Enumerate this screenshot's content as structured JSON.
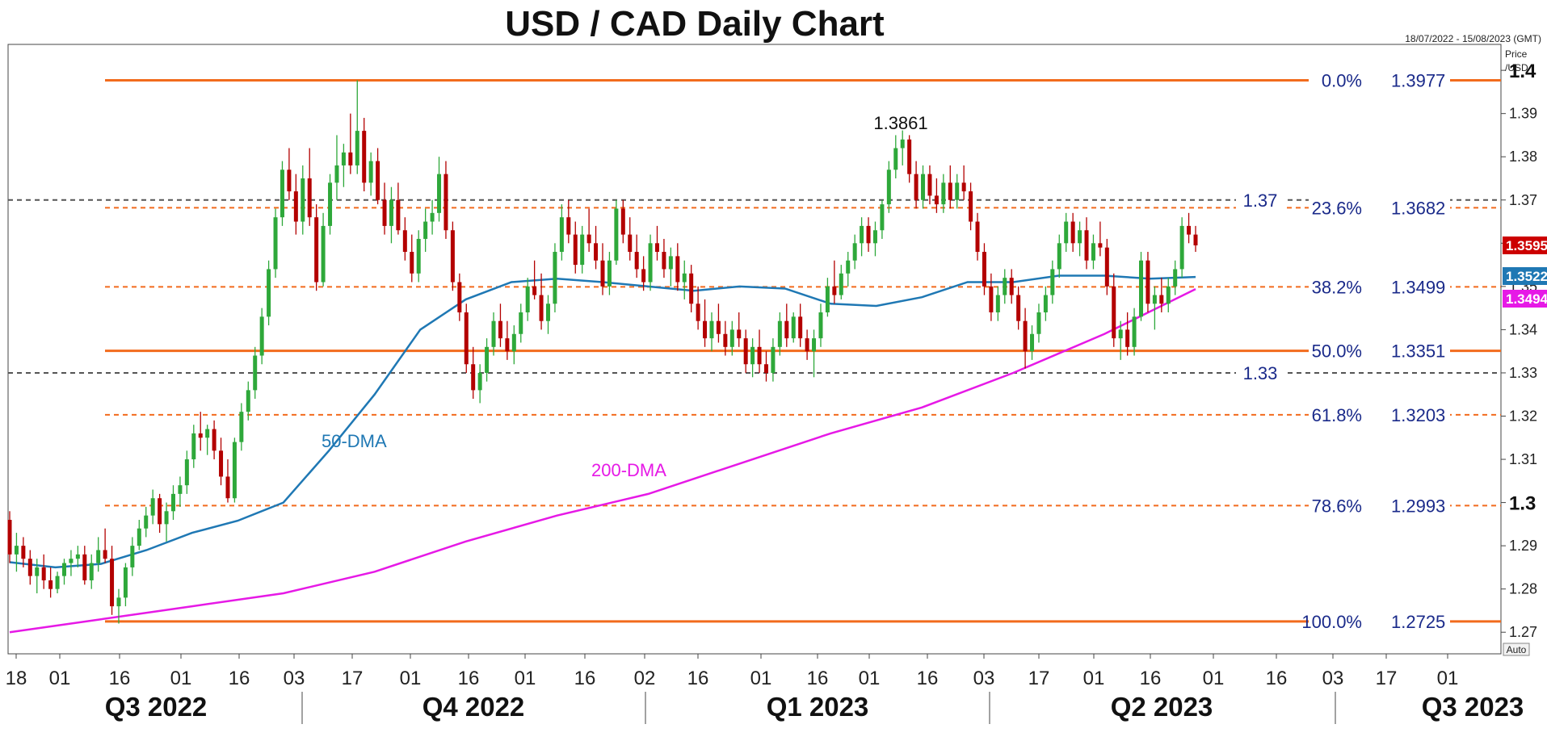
{
  "title": "USD / CAD Daily Chart",
  "date_range": "18/07/2022 - 15/08/2023 (GMT)",
  "price_axis_label": [
    "Price",
    "/USD"
  ],
  "auto_label": "Auto",
  "colors": {
    "up": "#2ea83a",
    "down": "#b30000",
    "fib": "#f26b1d",
    "dma50": "#1f78b4",
    "dma200": "#e619e6",
    "level": "#555555",
    "text_blue": "#1a2a8a",
    "price_badge": "#cc0000"
  },
  "chart_data": {
    "type": "candlestick",
    "title": "USD / CAD Daily Chart",
    "ylim": [
      1.265,
      1.406
    ],
    "y_ticks": [
      "1.27",
      "1.28",
      "1.29",
      "1.3",
      "1.31",
      "1.32",
      "1.33",
      "1.34",
      "1.35",
      "1.36",
      "1.37",
      "1.38",
      "1.39",
      "1.4"
    ],
    "x_ticks": [
      "18",
      "01",
      "16",
      "01",
      "16",
      "03",
      "17",
      "01",
      "16",
      "01",
      "16",
      "02",
      "16",
      "01",
      "16",
      "01",
      "16",
      "03",
      "17",
      "01",
      "16",
      "01",
      "16",
      "03",
      "17",
      "01"
    ],
    "quarters": [
      "Q3 2022",
      "Q4 2022",
      "Q1 2023",
      "Q2 2023",
      "Q3 2023"
    ],
    "fibonacci": [
      {
        "pct": "0.0%",
        "value": "1.3977",
        "level": 1.3977,
        "style": "solid"
      },
      {
        "pct": "23.6%",
        "value": "1.3682",
        "level": 1.3682,
        "style": "dashed"
      },
      {
        "pct": "38.2%",
        "value": "1.3499",
        "level": 1.3499,
        "style": "dashed"
      },
      {
        "pct": "50.0%",
        "value": "1.3351",
        "level": 1.3351,
        "style": "solid"
      },
      {
        "pct": "61.8%",
        "value": "1.3203",
        "level": 1.3203,
        "style": "dashed"
      },
      {
        "pct": "78.6%",
        "value": "1.2993",
        "level": 1.2993,
        "style": "dashed"
      },
      {
        "pct": "100.0%",
        "value": "1.2725",
        "level": 1.2725,
        "style": "solid"
      }
    ],
    "horizontal_levels": [
      {
        "label": "1.37",
        "level": 1.37
      },
      {
        "label": "1.33",
        "level": 1.33
      }
    ],
    "annotations": [
      {
        "text": "1.3861",
        "anchor_date": "2023-03-10",
        "price": 1.3861
      }
    ],
    "series_labels": [
      {
        "name": "50-DMA"
      },
      {
        "name": "200-DMA"
      }
    ],
    "last_values": [
      {
        "label": "1.3595",
        "value": 1.3595
      },
      {
        "label": "1.3522",
        "value": 1.3522
      },
      {
        "label": "1.3494",
        "value": 1.3494
      }
    ],
    "dma50": [
      [
        0,
        1.2862
      ],
      [
        10,
        1.285
      ],
      [
        20,
        1.2858
      ],
      [
        30,
        1.289
      ],
      [
        40,
        1.293
      ],
      [
        50,
        1.2958
      ],
      [
        60,
        1.3
      ],
      [
        70,
        1.312
      ],
      [
        80,
        1.325
      ],
      [
        90,
        1.34
      ],
      [
        100,
        1.347
      ],
      [
        110,
        1.351
      ],
      [
        120,
        1.3518
      ],
      [
        130,
        1.351
      ],
      [
        140,
        1.35
      ],
      [
        150,
        1.349
      ],
      [
        160,
        1.35
      ],
      [
        170,
        1.3495
      ],
      [
        180,
        1.346
      ],
      [
        190,
        1.3455
      ],
      [
        200,
        1.3475
      ],
      [
        210,
        1.351
      ],
      [
        220,
        1.351
      ],
      [
        230,
        1.3525
      ],
      [
        240,
        1.3525
      ],
      [
        250,
        1.3518
      ],
      [
        260,
        1.3522
      ]
    ],
    "dma200": [
      [
        0,
        1.27
      ],
      [
        20,
        1.273
      ],
      [
        40,
        1.276
      ],
      [
        60,
        1.279
      ],
      [
        80,
        1.284
      ],
      [
        100,
        1.291
      ],
      [
        120,
        1.297
      ],
      [
        140,
        1.302
      ],
      [
        160,
        1.309
      ],
      [
        180,
        1.316
      ],
      [
        200,
        1.322
      ],
      [
        220,
        1.33
      ],
      [
        240,
        1.339
      ],
      [
        260,
        1.3494
      ]
    ],
    "candles": [
      [
        0,
        1.296,
        1.298,
        1.286,
        1.288
      ],
      [
        1,
        1.288,
        1.293,
        1.284,
        1.29
      ],
      [
        2,
        1.29,
        1.292,
        1.285,
        1.287
      ],
      [
        3,
        1.287,
        1.289,
        1.281,
        1.283
      ],
      [
        4,
        1.283,
        1.287,
        1.279,
        1.285
      ],
      [
        5,
        1.285,
        1.288,
        1.28,
        1.282
      ],
      [
        6,
        1.282,
        1.285,
        1.278,
        1.28
      ],
      [
        7,
        1.28,
        1.284,
        1.279,
        1.283
      ],
      [
        8,
        1.283,
        1.287,
        1.281,
        1.286
      ],
      [
        9,
        1.286,
        1.289,
        1.283,
        1.287
      ],
      [
        10,
        1.287,
        1.29,
        1.285,
        1.288
      ],
      [
        11,
        1.288,
        1.29,
        1.281,
        1.282
      ],
      [
        12,
        1.282,
        1.288,
        1.28,
        1.286
      ],
      [
        13,
        1.286,
        1.292,
        1.284,
        1.289
      ],
      [
        14,
        1.289,
        1.294,
        1.286,
        1.287
      ],
      [
        15,
        1.287,
        1.29,
        1.274,
        1.276
      ],
      [
        16,
        1.276,
        1.28,
        1.272,
        1.278
      ],
      [
        17,
        1.278,
        1.286,
        1.276,
        1.285
      ],
      [
        18,
        1.285,
        1.292,
        1.283,
        1.29
      ],
      [
        19,
        1.29,
        1.296,
        1.289,
        1.294
      ],
      [
        20,
        1.294,
        1.299,
        1.292,
        1.297
      ],
      [
        21,
        1.297,
        1.303,
        1.295,
        1.301
      ],
      [
        22,
        1.301,
        1.302,
        1.293,
        1.295
      ],
      [
        23,
        1.295,
        1.3,
        1.291,
        1.298
      ],
      [
        24,
        1.298,
        1.304,
        1.296,
        1.302
      ],
      [
        25,
        1.302,
        1.306,
        1.299,
        1.304
      ],
      [
        26,
        1.304,
        1.312,
        1.302,
        1.31
      ],
      [
        27,
        1.31,
        1.318,
        1.308,
        1.316
      ],
      [
        28,
        1.316,
        1.321,
        1.312,
        1.315
      ],
      [
        29,
        1.315,
        1.318,
        1.311,
        1.317
      ],
      [
        30,
        1.317,
        1.319,
        1.31,
        1.312
      ],
      [
        31,
        1.312,
        1.315,
        1.304,
        1.306
      ],
      [
        32,
        1.306,
        1.31,
        1.3,
        1.301
      ],
      [
        33,
        1.301,
        1.315,
        1.3,
        1.314
      ],
      [
        34,
        1.314,
        1.323,
        1.312,
        1.321
      ],
      [
        35,
        1.321,
        1.328,
        1.319,
        1.326
      ],
      [
        36,
        1.326,
        1.336,
        1.324,
        1.334
      ],
      [
        37,
        1.334,
        1.345,
        1.332,
        1.343
      ],
      [
        38,
        1.343,
        1.356,
        1.341,
        1.354
      ],
      [
        39,
        1.354,
        1.368,
        1.352,
        1.366
      ],
      [
        40,
        1.366,
        1.379,
        1.364,
        1.377
      ],
      [
        41,
        1.377,
        1.382,
        1.37,
        1.372
      ],
      [
        42,
        1.372,
        1.376,
        1.362,
        1.365
      ],
      [
        43,
        1.365,
        1.378,
        1.362,
        1.375
      ],
      [
        44,
        1.375,
        1.382,
        1.364,
        1.366
      ],
      [
        45,
        1.366,
        1.369,
        1.349,
        1.351
      ],
      [
        46,
        1.351,
        1.367,
        1.35,
        1.364
      ],
      [
        47,
        1.364,
        1.376,
        1.362,
        1.374
      ],
      [
        48,
        1.374,
        1.385,
        1.37,
        1.378
      ],
      [
        49,
        1.378,
        1.383,
        1.373,
        1.381
      ],
      [
        50,
        1.381,
        1.39,
        1.376,
        1.378
      ],
      [
        51,
        1.378,
        1.3977,
        1.376,
        1.386
      ],
      [
        52,
        1.386,
        1.389,
        1.372,
        1.374
      ],
      [
        53,
        1.374,
        1.381,
        1.371,
        1.379
      ],
      [
        54,
        1.379,
        1.382,
        1.369,
        1.37
      ],
      [
        55,
        1.37,
        1.374,
        1.362,
        1.364
      ],
      [
        56,
        1.364,
        1.373,
        1.36,
        1.37
      ],
      [
        57,
        1.37,
        1.374,
        1.362,
        1.363
      ],
      [
        58,
        1.363,
        1.366,
        1.356,
        1.358
      ],
      [
        59,
        1.358,
        1.362,
        1.351,
        1.353
      ],
      [
        60,
        1.353,
        1.363,
        1.351,
        1.361
      ],
      [
        61,
        1.361,
        1.368,
        1.358,
        1.365
      ],
      [
        62,
        1.365,
        1.37,
        1.362,
        1.367
      ],
      [
        63,
        1.367,
        1.38,
        1.365,
        1.376
      ],
      [
        64,
        1.376,
        1.379,
        1.361,
        1.363
      ],
      [
        65,
        1.363,
        1.365,
        1.349,
        1.351
      ],
      [
        66,
        1.351,
        1.353,
        1.342,
        1.344
      ],
      [
        67,
        1.344,
        1.346,
        1.33,
        1.332
      ],
      [
        68,
        1.332,
        1.336,
        1.324,
        1.326
      ],
      [
        69,
        1.326,
        1.332,
        1.323,
        1.33
      ],
      [
        70,
        1.33,
        1.338,
        1.328,
        1.336
      ],
      [
        71,
        1.336,
        1.344,
        1.334,
        1.342
      ],
      [
        72,
        1.342,
        1.346,
        1.336,
        1.338
      ],
      [
        73,
        1.338,
        1.342,
        1.333,
        1.335
      ],
      [
        74,
        1.335,
        1.341,
        1.332,
        1.339
      ],
      [
        75,
        1.339,
        1.346,
        1.337,
        1.344
      ],
      [
        76,
        1.344,
        1.352,
        1.342,
        1.35
      ],
      [
        77,
        1.35,
        1.356,
        1.347,
        1.348
      ],
      [
        78,
        1.348,
        1.353,
        1.34,
        1.342
      ],
      [
        79,
        1.342,
        1.348,
        1.339,
        1.346
      ],
      [
        80,
        1.346,
        1.36,
        1.344,
        1.358
      ],
      [
        81,
        1.358,
        1.369,
        1.356,
        1.366
      ],
      [
        82,
        1.366,
        1.37,
        1.36,
        1.362
      ],
      [
        83,
        1.362,
        1.365,
        1.353,
        1.355
      ],
      [
        84,
        1.355,
        1.364,
        1.353,
        1.362
      ],
      [
        85,
        1.362,
        1.368,
        1.358,
        1.36
      ],
      [
        86,
        1.36,
        1.364,
        1.354,
        1.356
      ],
      [
        87,
        1.356,
        1.36,
        1.348,
        1.35
      ],
      [
        88,
        1.35,
        1.358,
        1.348,
        1.356
      ],
      [
        89,
        1.356,
        1.37,
        1.355,
        1.368
      ],
      [
        90,
        1.368,
        1.37,
        1.36,
        1.362
      ],
      [
        91,
        1.362,
        1.366,
        1.356,
        1.358
      ],
      [
        92,
        1.358,
        1.362,
        1.352,
        1.354
      ],
      [
        93,
        1.354,
        1.357,
        1.349,
        1.351
      ],
      [
        94,
        1.351,
        1.362,
        1.349,
        1.36
      ],
      [
        95,
        1.36,
        1.364,
        1.356,
        1.358
      ],
      [
        96,
        1.358,
        1.361,
        1.352,
        1.354
      ],
      [
        97,
        1.354,
        1.359,
        1.35,
        1.357
      ],
      [
        98,
        1.357,
        1.36,
        1.349,
        1.351
      ],
      [
        99,
        1.351,
        1.356,
        1.347,
        1.353
      ],
      [
        100,
        1.353,
        1.355,
        1.344,
        1.346
      ],
      [
        101,
        1.346,
        1.35,
        1.34,
        1.342
      ],
      [
        102,
        1.342,
        1.347,
        1.336,
        1.338
      ],
      [
        103,
        1.338,
        1.344,
        1.335,
        1.342
      ],
      [
        104,
        1.342,
        1.346,
        1.337,
        1.339
      ],
      [
        105,
        1.339,
        1.342,
        1.334,
        1.336
      ],
      [
        106,
        1.336,
        1.342,
        1.334,
        1.34
      ],
      [
        107,
        1.34,
        1.344,
        1.336,
        1.338
      ],
      [
        108,
        1.338,
        1.34,
        1.33,
        1.332
      ],
      [
        109,
        1.332,
        1.338,
        1.329,
        1.336
      ],
      [
        110,
        1.336,
        1.34,
        1.33,
        1.332
      ],
      [
        111,
        1.332,
        1.335,
        1.328,
        1.33
      ],
      [
        112,
        1.33,
        1.338,
        1.328,
        1.336
      ],
      [
        113,
        1.336,
        1.344,
        1.334,
        1.342
      ],
      [
        114,
        1.342,
        1.346,
        1.336,
        1.338
      ],
      [
        115,
        1.338,
        1.344,
        1.337,
        1.343
      ],
      [
        116,
        1.343,
        1.346,
        1.336,
        1.338
      ],
      [
        117,
        1.338,
        1.34,
        1.333,
        1.335
      ],
      [
        118,
        1.335,
        1.34,
        1.329,
        1.338
      ],
      [
        119,
        1.338,
        1.346,
        1.336,
        1.344
      ],
      [
        120,
        1.344,
        1.352,
        1.343,
        1.35
      ],
      [
        121,
        1.35,
        1.356,
        1.346,
        1.348
      ],
      [
        122,
        1.348,
        1.355,
        1.347,
        1.353
      ],
      [
        123,
        1.353,
        1.358,
        1.35,
        1.356
      ],
      [
        124,
        1.356,
        1.362,
        1.354,
        1.36
      ],
      [
        125,
        1.36,
        1.366,
        1.357,
        1.364
      ],
      [
        126,
        1.364,
        1.366,
        1.358,
        1.36
      ],
      [
        127,
        1.36,
        1.365,
        1.357,
        1.363
      ],
      [
        128,
        1.363,
        1.37,
        1.361,
        1.369
      ],
      [
        129,
        1.369,
        1.379,
        1.367,
        1.377
      ],
      [
        130,
        1.377,
        1.385,
        1.375,
        1.382
      ],
      [
        131,
        1.382,
        1.3861,
        1.378,
        1.384
      ],
      [
        132,
        1.384,
        1.385,
        1.374,
        1.376
      ],
      [
        133,
        1.376,
        1.379,
        1.368,
        1.37
      ],
      [
        134,
        1.37,
        1.378,
        1.368,
        1.376
      ],
      [
        135,
        1.376,
        1.378,
        1.369,
        1.371
      ],
      [
        136,
        1.371,
        1.375,
        1.367,
        1.369
      ],
      [
        137,
        1.369,
        1.376,
        1.367,
        1.374
      ],
      [
        138,
        1.374,
        1.378,
        1.368,
        1.37
      ],
      [
        139,
        1.37,
        1.376,
        1.368,
        1.374
      ],
      [
        140,
        1.374,
        1.378,
        1.37,
        1.372
      ],
      [
        141,
        1.372,
        1.374,
        1.363,
        1.365
      ],
      [
        142,
        1.365,
        1.367,
        1.356,
        1.358
      ],
      [
        143,
        1.358,
        1.36,
        1.348,
        1.35
      ],
      [
        144,
        1.35,
        1.353,
        1.342,
        1.344
      ],
      [
        145,
        1.344,
        1.35,
        1.342,
        1.348
      ],
      [
        146,
        1.348,
        1.354,
        1.346,
        1.352
      ],
      [
        147,
        1.352,
        1.354,
        1.346,
        1.348
      ],
      [
        148,
        1.348,
        1.35,
        1.34,
        1.342
      ],
      [
        149,
        1.342,
        1.345,
        1.331,
        1.335
      ],
      [
        150,
        1.335,
        1.341,
        1.333,
        1.339
      ],
      [
        151,
        1.339,
        1.346,
        1.337,
        1.344
      ],
      [
        152,
        1.344,
        1.35,
        1.342,
        1.348
      ],
      [
        153,
        1.348,
        1.356,
        1.346,
        1.354
      ],
      [
        154,
        1.354,
        1.362,
        1.352,
        1.36
      ],
      [
        155,
        1.36,
        1.367,
        1.358,
        1.365
      ],
      [
        156,
        1.365,
        1.367,
        1.358,
        1.36
      ],
      [
        157,
        1.36,
        1.365,
        1.357,
        1.363
      ],
      [
        158,
        1.363,
        1.366,
        1.354,
        1.356
      ],
      [
        159,
        1.356,
        1.362,
        1.354,
        1.36
      ],
      [
        160,
        1.36,
        1.365,
        1.357,
        1.359
      ],
      [
        161,
        1.359,
        1.361,
        1.348,
        1.35
      ],
      [
        162,
        1.35,
        1.353,
        1.336,
        1.338
      ],
      [
        163,
        1.338,
        1.342,
        1.333,
        1.34
      ],
      [
        164,
        1.34,
        1.344,
        1.334,
        1.336
      ],
      [
        165,
        1.336,
        1.345,
        1.334,
        1.343
      ],
      [
        166,
        1.343,
        1.358,
        1.342,
        1.356
      ],
      [
        167,
        1.356,
        1.358,
        1.344,
        1.346
      ],
      [
        168,
        1.346,
        1.35,
        1.34,
        1.348
      ],
      [
        169,
        1.348,
        1.352,
        1.344,
        1.346
      ],
      [
        170,
        1.346,
        1.352,
        1.344,
        1.35
      ],
      [
        171,
        1.35,
        1.356,
        1.348,
        1.354
      ],
      [
        172,
        1.354,
        1.366,
        1.352,
        1.364
      ],
      [
        173,
        1.364,
        1.367,
        1.36,
        1.362
      ],
      [
        174,
        1.362,
        1.364,
        1.358,
        1.3595
      ]
    ]
  }
}
